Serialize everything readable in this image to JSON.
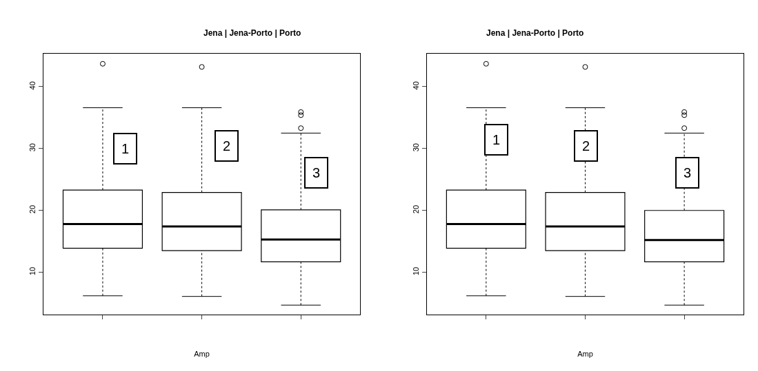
{
  "chart_data": [
    {
      "type": "box",
      "title": "Jena | Jena-Porto | Porto",
      "xlabel": "Amp",
      "categories": [
        null,
        null,
        null
      ],
      "ylim": [
        3.2,
        45.3
      ],
      "yticks": [
        10,
        20,
        30,
        40
      ],
      "color": "#000000",
      "annotations": [
        "1",
        "2",
        "3"
      ],
      "boxes": [
        {
          "low": 6.2,
          "q1": 13.9,
          "median": 17.8,
          "q3": 23.3,
          "high": 36.6,
          "outliers": [
            43.7
          ]
        },
        {
          "low": 6.1,
          "q1": 13.5,
          "median": 17.4,
          "q3": 22.9,
          "high": 36.6,
          "outliers": [
            43.2
          ]
        },
        {
          "low": 4.7,
          "q1": 11.7,
          "median": 15.3,
          "q3": 20.1,
          "high": 32.5,
          "outliers": [
            33.3,
            35.4,
            35.9
          ]
        }
      ]
    },
    {
      "type": "box",
      "title": "Jena | Jena-Porto | Porto",
      "xlabel": "Amp",
      "categories": [
        null,
        null,
        null
      ],
      "ylim": [
        3.2,
        45.3
      ],
      "yticks": [
        10,
        20,
        30,
        40
      ],
      "color": "#000000",
      "annotations": [
        "1",
        "2",
        "3"
      ],
      "boxes": [
        {
          "low": 6.2,
          "q1": 13.9,
          "median": 17.8,
          "q3": 23.3,
          "high": 36.6,
          "outliers": [
            43.7
          ]
        },
        {
          "low": 6.1,
          "q1": 13.5,
          "median": 17.4,
          "q3": 22.9,
          "high": 36.6,
          "outliers": [
            43.2
          ]
        },
        {
          "low": 4.7,
          "q1": 11.7,
          "median": 15.2,
          "q3": 20.0,
          "high": 32.5,
          "outliers": [
            33.3,
            35.4,
            35.9
          ]
        }
      ]
    }
  ]
}
